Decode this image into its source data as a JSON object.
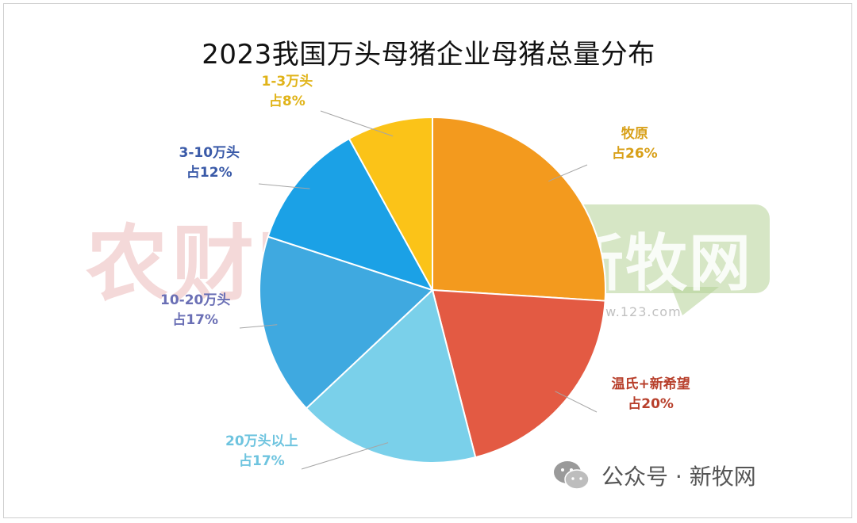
{
  "chart_data": {
    "type": "pie",
    "title": "2023我国万头母猪企业母猪总量分布",
    "slices": [
      {
        "name": "牧原",
        "value": 26,
        "line1": "牧原",
        "line2": "占26%",
        "color": "#F39A1E",
        "label_color": "#D8A019"
      },
      {
        "name": "温氏+新希望",
        "value": 20,
        "line1": "温氏+新希望",
        "line2": "占20%",
        "color": "#E35A43",
        "label_color": "#B8402C"
      },
      {
        "name": "20万头以上",
        "value": 17,
        "line1": "20万头以上",
        "line2": "占17%",
        "color": "#7AD0EA",
        "label_color": "#6EC4DF"
      },
      {
        "name": "10-20万头",
        "value": 17,
        "line1": "10-20万头",
        "line2": "占17%",
        "color": "#3FA9E0",
        "label_color": "#6A6FB5"
      },
      {
        "name": "3-10万头",
        "value": 12,
        "line1": "3-10万头",
        "line2": "占12%",
        "color": "#1BA1E6",
        "label_color": "#3A5AA8"
      },
      {
        "name": "1-3万头",
        "value": 8,
        "line1": "1-3万头",
        "line2": "占8%",
        "color": "#FBC318",
        "label_color": "#E0B318"
      }
    ],
    "start_angle": "12 o'clock",
    "direction": "clockwise",
    "legend": "none"
  },
  "watermarks": {
    "left_text": "农财宝典",
    "right_text": "新牧网",
    "right_url": "www.123.com"
  },
  "footer": {
    "icon": "wechat-icon",
    "text": "公众号 · 新牧网"
  }
}
